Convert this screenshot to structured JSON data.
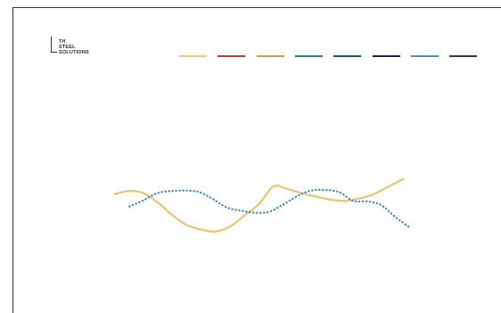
{
  "logo": {
    "text": "TH\nSTEEL\nSOLUTIONS"
  },
  "legend": {
    "swatches": [
      {
        "color": "#e8c87a"
      },
      {
        "color": "#b5432a"
      },
      {
        "color": "#c9a043"
      },
      {
        "color": "#2a7d95"
      },
      {
        "color": "#1f5470"
      },
      {
        "color": "#16243f"
      },
      {
        "color": "#4a90b8"
      },
      {
        "color": "#233a55"
      }
    ]
  },
  "chart_data": {
    "type": "line",
    "title": "",
    "xlabel": "",
    "ylabel": "",
    "grid": false,
    "legend_position": "top-right",
    "series": [
      {
        "color": "#e8c87a",
        "style": "solid",
        "x": [
          0,
          0.05,
          0.1,
          0.15,
          0.2,
          0.25,
          0.3,
          0.35,
          0.4,
          0.45,
          0.5,
          0.55,
          0.6,
          0.65,
          0.7,
          0.75,
          0.8,
          0.85,
          0.9,
          0.95,
          1.0
        ],
        "y": [
          0.62,
          0.67,
          0.63,
          0.48,
          0.28,
          0.12,
          0.05,
          0.02,
          0.1,
          0.28,
          0.46,
          0.74,
          0.7,
          0.63,
          0.58,
          0.53,
          0.51,
          0.55,
          0.62,
          0.74,
          0.86
        ]
      },
      {
        "color": "#4a90b8",
        "style": "dotted",
        "x": [
          0,
          0.05,
          0.1,
          0.15,
          0.2,
          0.25,
          0.3,
          0.35,
          0.4,
          0.45,
          0.5,
          0.55,
          0.6,
          0.65,
          0.7,
          0.75,
          0.8,
          0.85,
          0.9,
          0.95,
          1.0
        ],
        "y": [
          0.42,
          0.54,
          0.68,
          0.72,
          0.73,
          0.7,
          0.56,
          0.4,
          0.34,
          0.3,
          0.32,
          0.46,
          0.62,
          0.73,
          0.74,
          0.7,
          0.53,
          0.52,
          0.45,
          0.22,
          0.02
        ]
      }
    ]
  }
}
